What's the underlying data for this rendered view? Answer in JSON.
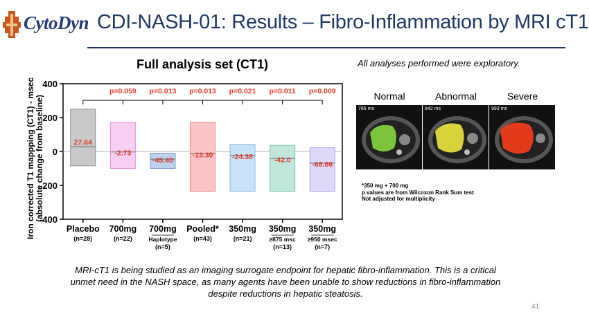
{
  "header": {
    "logo_text": "CytoDyn",
    "title": "CDI-NASH-01: Results – Fibro-Inflammation by MRI cT1"
  },
  "exploratory_note": "All analyses performed were exploratory.",
  "mri_images": [
    {
      "label": "Normal",
      "ms": "765 ms",
      "color": "#7cc43a"
    },
    {
      "label": "Abnormal",
      "ms": "842 ms",
      "color": "#d9d23a"
    },
    {
      "label": "Severe",
      "ms": "993 ms",
      "color": "#e33a1a"
    }
  ],
  "footnotes": [
    "*350 mg + 700 mg",
    "p values are from Wilcoxon Rank Sum test",
    "Not adjusted for multiplicity"
  ],
  "bottom_text": "MRI-cT1 is being studied as an imaging surrogate endpoint for hepatic fibro-inflammation. This is a critical unmet need in the NASH space, as many agents have been unable to show reductions in fibro-inflammation despite reductions in hepatic steatosis.",
  "slide_number": "41",
  "chart_data": {
    "type": "bar",
    "title": "Full analysis set  (CT1)",
    "ylabel": "Iron corrected T1 mappping (CT1) - msec",
    "ylabel2": "(absolute change from baseline)",
    "ylim": [
      -400,
      400
    ],
    "yticks": [
      "-400",
      "-200",
      "0",
      "200",
      "400"
    ],
    "ytick_values": [
      -400,
      -200,
      0,
      200,
      400
    ],
    "reference_group": "Placebo",
    "categories": [
      {
        "label": "Placebo",
        "n": "(n=28)",
        "sub": "",
        "low": -85,
        "high": 250,
        "median": 27.64,
        "median_label": "27.64",
        "p": "",
        "fill": "#c9c9c9",
        "stroke": "#8c8c8c"
      },
      {
        "label": "700mg",
        "n": "(n=22)",
        "sub": "",
        "low": -100,
        "high": 172,
        "median": -2.73,
        "median_label": "-2.73",
        "p": "p=0.059",
        "fill": "#f7cff3",
        "stroke": "#e08fd8"
      },
      {
        "label": "700mg",
        "n": "(n=5)",
        "sub": "Haplotype",
        "low": -100,
        "high": -10,
        "median": -45.4,
        "median_label": "-45.40",
        "p": "p=0.013",
        "fill": "#bcd2ee",
        "stroke": "#7a9cc8"
      },
      {
        "label": "Pooled*",
        "n": "(n=43)",
        "sub": "",
        "low": -235,
        "high": 173,
        "median": -13.3,
        "median_label": "-13.30",
        "p": "p=0.013",
        "fill": "#fac4c4",
        "stroke": "#ea8a8a"
      },
      {
        "label": "350mg",
        "n": "(n=21)",
        "sub": "",
        "low": -235,
        "high": 42,
        "median": -24.38,
        "median_label": "-24.38",
        "p": "p=0.021",
        "fill": "#c8e3f9",
        "stroke": "#86bde8"
      },
      {
        "label": "350mg",
        "n": "(n=13)",
        "sub": "≥875 msc",
        "low": -235,
        "high": 36,
        "median": -42.0,
        "median_label": "-42.0",
        "p": "p=0.011",
        "fill": "#c1e6da",
        "stroke": "#7cc3ac"
      },
      {
        "label": "350mg",
        "n": "(n=7)",
        "sub": "≥950 msec",
        "low": -235,
        "high": 22,
        "median": -68.86,
        "median_label": "-68.86",
        "p": "p=0.009",
        "fill": "#ddd9fa",
        "stroke": "#aaa2ea"
      }
    ],
    "p_color": "#e0392b",
    "median_color": "#e0392b"
  }
}
